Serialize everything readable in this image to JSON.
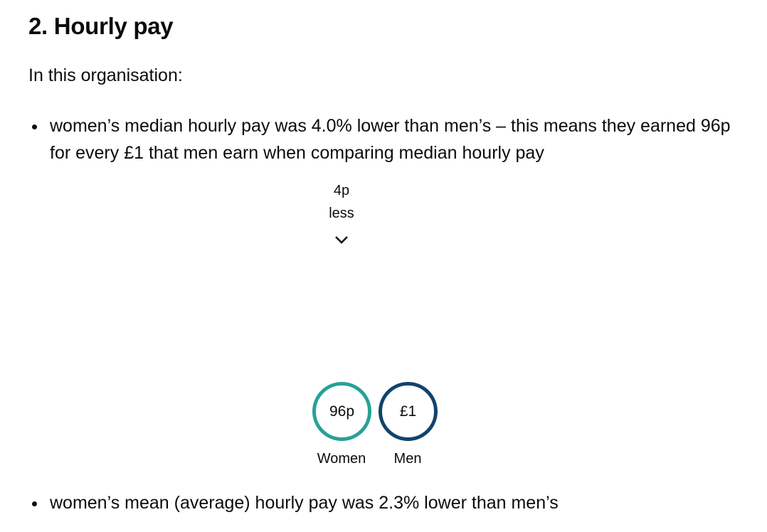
{
  "heading": "2. Hourly pay",
  "intro": "In this organisation:",
  "bullets": [
    "women’s median hourly pay was 4.0% lower than men’s – this means they earned 96p for every £1 that men earn when comparing median hourly pay",
    "women’s mean (average) hourly pay was 2.3% lower than men’s"
  ],
  "chart": {
    "difference_line1": "4p",
    "difference_line2": "less",
    "arrow_icon": "chevron-down-icon",
    "colors": {
      "women": "#28a197",
      "men": "#12436d"
    }
  },
  "chart_data": {
    "type": "bar",
    "categories": [
      "Women",
      "Men"
    ],
    "values": [
      96,
      100
    ],
    "value_labels": [
      "96p",
      "£1"
    ],
    "annotation": "4p less"
  }
}
